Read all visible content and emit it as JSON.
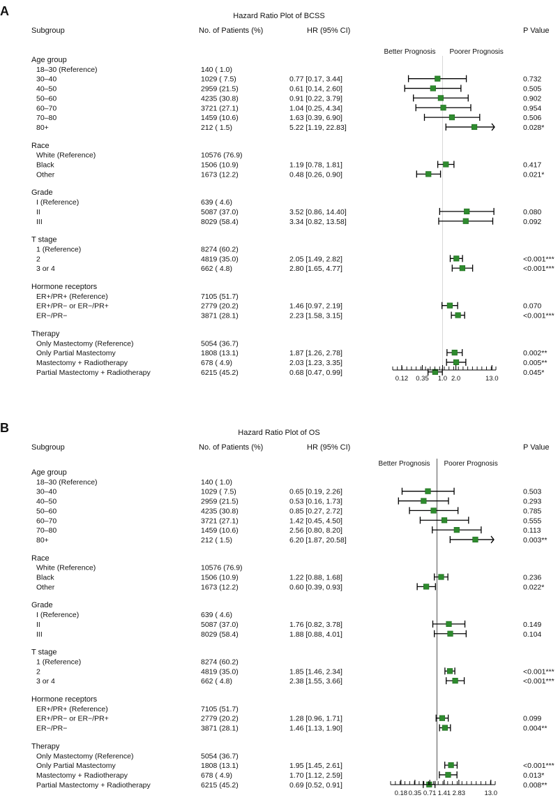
{
  "colors": {
    "marker": "#2e8b2e",
    "refline": "#8a8a8a",
    "text": "#111111"
  },
  "chart_data": [
    {
      "type": "forest",
      "panel_label": "A",
      "title": "Hazard Ratio Plot of BCSS",
      "headers": {
        "subgroup": "Subgroup",
        "patients": "No. of Patients (%)",
        "hr": "HR (95% CI)",
        "p": "P Value"
      },
      "direction_labels": {
        "left": "Better Prognosis",
        "right": "Poorer Prognosis"
      },
      "axis": {
        "ticks": [
          "0.12",
          "0.35",
          "1.0",
          "2.0",
          "13.0"
        ],
        "tick_values": [
          0.12,
          0.35,
          1.0,
          2.0,
          13.0
        ],
        "reference": 1.0,
        "range": [
          0.075,
          16
        ]
      },
      "groups": [
        {
          "name": "Age group",
          "rows": [
            {
              "label": "18–30 (Reference)",
              "n": "140 ( 1.0)",
              "hr_text": "",
              "p": ""
            },
            {
              "label": "30–40",
              "n": "1029 ( 7.5)",
              "hr_text": "0.77 [0.17, 3.44]",
              "p": "0.732",
              "hr": 0.77,
              "lo": 0.17,
              "hi": 3.44
            },
            {
              "label": "40–50",
              "n": "2959 (21.5)",
              "hr_text": "0.61 [0.14, 2.60]",
              "p": "0.505",
              "hr": 0.61,
              "lo": 0.14,
              "hi": 2.6
            },
            {
              "label": "50–60",
              "n": "4235 (30.8)",
              "hr_text": "0.91 [0.22, 3.79]",
              "p": "0.902",
              "hr": 0.91,
              "lo": 0.22,
              "hi": 3.79
            },
            {
              "label": "60–70",
              "n": "3721 (27.1)",
              "hr_text": "1.04 [0.25, 4.34]",
              "p": "0.954",
              "hr": 1.04,
              "lo": 0.25,
              "hi": 4.34
            },
            {
              "label": "70–80",
              "n": "1459 (10.6)",
              "hr_text": "1.63 [0.39, 6.90]",
              "p": "0.506",
              "hr": 1.63,
              "lo": 0.39,
              "hi": 6.9
            },
            {
              "label": "80+",
              "n": "212 ( 1.5)",
              "hr_text": "5.22 [1.19, 22.83]",
              "p": "0.028*",
              "hr": 5.22,
              "lo": 1.19,
              "hi": 22.83
            }
          ]
        },
        {
          "name": "Race",
          "rows": [
            {
              "label": "White (Reference)",
              "n": "10576 (76.9)",
              "hr_text": "",
              "p": ""
            },
            {
              "label": "Black",
              "n": "1506 (10.9)",
              "hr_text": "1.19 [0.78, 1.81]",
              "p": "0.417",
              "hr": 1.19,
              "lo": 0.78,
              "hi": 1.81
            },
            {
              "label": "Other",
              "n": "1673 (12.2)",
              "hr_text": "0.48 [0.26, 0.90]",
              "p": "0.021*",
              "hr": 0.48,
              "lo": 0.26,
              "hi": 0.9
            }
          ]
        },
        {
          "name": "Grade",
          "rows": [
            {
              "label": "I (Reference)",
              "n": "639 ( 4.6)",
              "hr_text": "",
              "p": ""
            },
            {
              "label": "II",
              "n": "5087 (37.0)",
              "hr_text": "3.52 [0.86, 14.40]",
              "p": "0.080",
              "hr": 3.52,
              "lo": 0.86,
              "hi": 14.4
            },
            {
              "label": "III",
              "n": "8029 (58.4)",
              "hr_text": "3.34 [0.82, 13.58]",
              "p": "0.092",
              "hr": 3.34,
              "lo": 0.82,
              "hi": 13.58
            }
          ]
        },
        {
          "name": "T stage",
          "rows": [
            {
              "label": "1 (Reference)",
              "n": "8274 (60.2)",
              "hr_text": "",
              "p": ""
            },
            {
              "label": "2",
              "n": "4819 (35.0)",
              "hr_text": "2.05 [1.49, 2.82]",
              "p": "<0.001***",
              "hr": 2.05,
              "lo": 1.49,
              "hi": 2.82
            },
            {
              "label": "3 or 4",
              "n": "662 ( 4.8)",
              "hr_text": "2.80 [1.65, 4.77]",
              "p": "<0.001***",
              "hr": 2.8,
              "lo": 1.65,
              "hi": 4.77
            }
          ]
        },
        {
          "name": "Hormone receptors",
          "rows": [
            {
              "label": "ER+/PR+ (Reference)",
              "n": "7105 (51.7)",
              "hr_text": "",
              "p": ""
            },
            {
              "label": "ER+/PR− or ER−/PR+",
              "n": "2779 (20.2)",
              "hr_text": "1.46 [0.97, 2.19]",
              "p": "0.070",
              "hr": 1.46,
              "lo": 0.97,
              "hi": 2.19
            },
            {
              "label": "ER−/PR−",
              "n": "3871 (28.1)",
              "hr_text": "2.23 [1.58, 3.15]",
              "p": "<0.001***",
              "hr": 2.23,
              "lo": 1.58,
              "hi": 3.15
            }
          ]
        },
        {
          "name": "Therapy",
          "rows": [
            {
              "label": "Only Mastectomy (Reference)",
              "n": "5054 (36.7)",
              "hr_text": "",
              "p": ""
            },
            {
              "label": "Only Partial Mastectomy",
              "n": "1808 (13.1)",
              "hr_text": "1.87 [1.26, 2.78]",
              "p": "0.002**",
              "hr": 1.87,
              "lo": 1.26,
              "hi": 2.78
            },
            {
              "label": "Mastectomy + Radiotherapy",
              "n": "678 ( 4.9)",
              "hr_text": "2.03 [1.23, 3.35]",
              "p": "0.005**",
              "hr": 2.03,
              "lo": 1.23,
              "hi": 3.35
            },
            {
              "label": "Partial Mastectomy + Radiotherapy",
              "n": "6215 (45.2)",
              "hr_text": "0.68 [0.47, 0.99]",
              "p": "0.045*",
              "hr": 0.68,
              "lo": 0.47,
              "hi": 0.99
            }
          ]
        }
      ]
    },
    {
      "type": "forest",
      "panel_label": "B",
      "title": "Hazard Ratio Plot of OS",
      "headers": {
        "subgroup": "Subgroup",
        "patients": "No. of Patients (%)",
        "hr": "HR (95% CI)",
        "p": "P Value"
      },
      "direction_labels": {
        "left": "Better Prognosis",
        "right": "Poorer Prognosis"
      },
      "axis": {
        "ticks": [
          "0.18",
          "0.35",
          "0.71",
          "1.41",
          "2.83",
          "13.0"
        ],
        "tick_values": [
          0.18,
          0.35,
          0.71,
          1.41,
          2.83,
          13.0
        ],
        "reference": 1.0,
        "range": [
          0.11,
          16
        ]
      },
      "groups": [
        {
          "name": "Age group",
          "rows": [
            {
              "label": "18–30 (Reference)",
              "n": "140 ( 1.0)",
              "hr_text": "",
              "p": ""
            },
            {
              "label": "30–40",
              "n": "1029 ( 7.5)",
              "hr_text": "0.65 [0.19, 2.26]",
              "p": "0.503",
              "hr": 0.65,
              "lo": 0.19,
              "hi": 2.26
            },
            {
              "label": "40–50",
              "n": "2959 (21.5)",
              "hr_text": "0.53 [0.16, 1.73]",
              "p": "0.293",
              "hr": 0.53,
              "lo": 0.16,
              "hi": 1.73
            },
            {
              "label": "50–60",
              "n": "4235 (30.8)",
              "hr_text": "0.85 [0.27, 2.72]",
              "p": "0.785",
              "hr": 0.85,
              "lo": 0.27,
              "hi": 2.72
            },
            {
              "label": "60–70",
              "n": "3721 (27.1)",
              "hr_text": "1.42 [0.45, 4.50]",
              "p": "0.555",
              "hr": 1.42,
              "lo": 0.45,
              "hi": 4.5
            },
            {
              "label": "70–80",
              "n": "1459 (10.6)",
              "hr_text": "2.56 [0.80, 8.20]",
              "p": "0.113",
              "hr": 2.56,
              "lo": 0.8,
              "hi": 8.2
            },
            {
              "label": "80+",
              "n": "212 ( 1.5)",
              "hr_text": "6.20 [1.87, 20.58]",
              "p": "0.003**",
              "hr": 6.2,
              "lo": 1.87,
              "hi": 20.58
            }
          ]
        },
        {
          "name": "Race",
          "rows": [
            {
              "label": "White (Reference)",
              "n": "10576 (76.9)",
              "hr_text": "",
              "p": ""
            },
            {
              "label": "Black",
              "n": "1506 (10.9)",
              "hr_text": "1.22 [0.88, 1.68]",
              "p": "0.236",
              "hr": 1.22,
              "lo": 0.88,
              "hi": 1.68
            },
            {
              "label": "Other",
              "n": "1673 (12.2)",
              "hr_text": "0.60 [0.39, 0.93]",
              "p": "0.022*",
              "hr": 0.6,
              "lo": 0.39,
              "hi": 0.93
            }
          ]
        },
        {
          "name": "Grade",
          "rows": [
            {
              "label": "I (Reference)",
              "n": "639 ( 4.6)",
              "hr_text": "",
              "p": ""
            },
            {
              "label": "II",
              "n": "5087 (37.0)",
              "hr_text": "1.76 [0.82, 3.78]",
              "p": "0.149",
              "hr": 1.76,
              "lo": 0.82,
              "hi": 3.78
            },
            {
              "label": "III",
              "n": "8029 (58.4)",
              "hr_text": "1.88 [0.88, 4.01]",
              "p": "0.104",
              "hr": 1.88,
              "lo": 0.88,
              "hi": 4.01
            }
          ]
        },
        {
          "name": "T stage",
          "rows": [
            {
              "label": "1 (Reference)",
              "n": "8274 (60.2)",
              "hr_text": "",
              "p": ""
            },
            {
              "label": "2",
              "n": "4819 (35.0)",
              "hr_text": "1.85 [1.46, 2.34]",
              "p": "<0.001***",
              "hr": 1.85,
              "lo": 1.46,
              "hi": 2.34
            },
            {
              "label": "3 or 4",
              "n": "662 ( 4.8)",
              "hr_text": "2.38 [1.55, 3.66]",
              "p": "<0.001***",
              "hr": 2.38,
              "lo": 1.55,
              "hi": 3.66
            }
          ]
        },
        {
          "name": "Hormone receptors",
          "rows": [
            {
              "label": "ER+/PR+ (Reference)",
              "n": "7105 (51.7)",
              "hr_text": "",
              "p": ""
            },
            {
              "label": "ER+/PR− or ER−/PR+",
              "n": "2779 (20.2)",
              "hr_text": "1.28 [0.96, 1.71]",
              "p": "0.099",
              "hr": 1.28,
              "lo": 0.96,
              "hi": 1.71
            },
            {
              "label": "ER−/PR−",
              "n": "3871 (28.1)",
              "hr_text": "1.46 [1.13, 1.90]",
              "p": "0.004**",
              "hr": 1.46,
              "lo": 1.13,
              "hi": 1.9
            }
          ]
        },
        {
          "name": "Therapy",
          "rows": [
            {
              "label": "Only Mastectomy (Reference)",
              "n": "5054 (36.7)",
              "hr_text": "",
              "p": ""
            },
            {
              "label": "Only Partial Mastectomy",
              "n": "1808 (13.1)",
              "hr_text": "1.95 [1.45, 2.61]",
              "p": "<0.001***",
              "hr": 1.95,
              "lo": 1.45,
              "hi": 2.61
            },
            {
              "label": "Mastectomy + Radiotherapy",
              "n": "678 ( 4.9)",
              "hr_text": "1.70 [1.12, 2.59]",
              "p": "0.013*",
              "hr": 1.7,
              "lo": 1.12,
              "hi": 2.59
            },
            {
              "label": "Partial Mastectomy + Radiotherapy",
              "n": "6215 (45.2)",
              "hr_text": "0.69 [0.52, 0.91]",
              "p": "0.008**",
              "hr": 0.69,
              "lo": 0.52,
              "hi": 0.91
            }
          ]
        }
      ]
    }
  ]
}
